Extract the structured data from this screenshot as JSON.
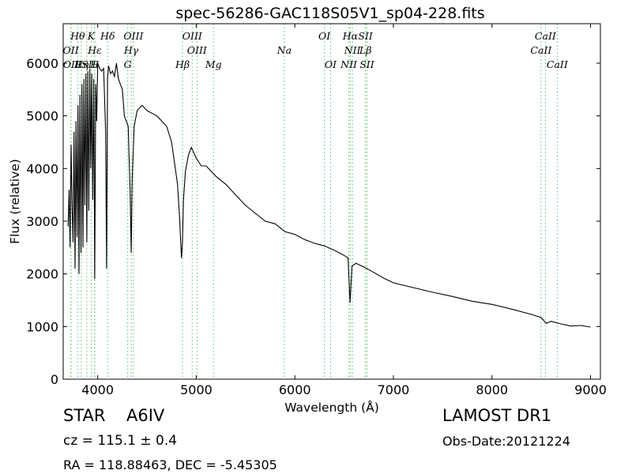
{
  "chart_data": {
    "type": "line",
    "title": "spec-56286-GAC118S05V1_sp04-228.fits",
    "xlabel": "Wavelength (Å)",
    "ylabel": "Flux (relative)",
    "xlim": [
      3650,
      9100
    ],
    "ylim": [
      0,
      6750
    ],
    "xticks": [
      4000,
      5000,
      6000,
      7000,
      8000,
      9000
    ],
    "yticks": [
      0,
      1000,
      2000,
      3000,
      4000,
      5000,
      6000
    ],
    "grid": false,
    "line_color": "#000000",
    "marker_color": "#5fbf6f",
    "series": [
      {
        "x": [
          3700,
          3710,
          3720,
          3730,
          3740,
          3750,
          3760,
          3770,
          3780,
          3790,
          3800,
          3810,
          3820,
          3830,
          3840,
          3850,
          3860,
          3870,
          3880,
          3890,
          3900,
          3910,
          3920,
          3930,
          3940,
          3950,
          3960,
          3970,
          3980,
          3990,
          4000,
          4020,
          4040,
          4060,
          4080,
          4090,
          4100,
          4110,
          4130,
          4150,
          4170,
          4190,
          4210,
          4230,
          4250,
          4270,
          4290,
          4310,
          4330,
          4340,
          4350,
          4370,
          4400,
          4450,
          4500,
          4550,
          4600,
          4650,
          4700,
          4750,
          4780,
          4810,
          4830,
          4850,
          4860,
          4870,
          4890,
          4920,
          4950,
          5000,
          5050,
          5100,
          5200,
          5300,
          5400,
          5500,
          5600,
          5700,
          5800,
          5900,
          6000,
          6100,
          6200,
          6300,
          6400,
          6450,
          6500,
          6540,
          6560,
          6580,
          6620,
          6700,
          6800,
          6900,
          7000,
          7200,
          7400,
          7600,
          7800,
          8000,
          8200,
          8400,
          8500,
          8550,
          8600,
          8700,
          8800,
          8900,
          9000
        ],
        "y": [
          2900,
          3600,
          2500,
          4450,
          3300,
          2600,
          4700,
          2100,
          4900,
          2700,
          5200,
          2000,
          5400,
          2400,
          5600,
          2500,
          5700,
          3300,
          5800,
          2600,
          5850,
          3200,
          5900,
          4000,
          5800,
          3400,
          5700,
          1900,
          5600,
          4900,
          6000,
          5900,
          5850,
          5900,
          4700,
          2100,
          5700,
          5950,
          5800,
          5850,
          5750,
          6000,
          5700,
          5600,
          5500,
          5000,
          4900,
          4800,
          3500,
          2400,
          3800,
          4800,
          5100,
          5200,
          5100,
          5050,
          5000,
          4900,
          4800,
          4500,
          4100,
          3700,
          3100,
          2300,
          2600,
          3400,
          3950,
          4250,
          4400,
          4200,
          4050,
          4050,
          3850,
          3700,
          3500,
          3300,
          3150,
          3000,
          2950,
          2800,
          2750,
          2650,
          2580,
          2530,
          2450,
          2400,
          2350,
          2300,
          1450,
          2150,
          2200,
          2130,
          2030,
          1920,
          1830,
          1740,
          1650,
          1570,
          1480,
          1420,
          1330,
          1230,
          1170,
          1060,
          1100,
          1050,
          1010,
          1020,
          990
        ]
      }
    ],
    "lines_top": [
      {
        "label": "Hθ",
        "x": 3797
      },
      {
        "label": "K",
        "x": 3934
      },
      {
        "label": "Hδ",
        "x": 4101
      },
      {
        "label": "OIII",
        "x": 4363
      },
      {
        "label": "OIII",
        "x": 4959
      },
      {
        "label": "OI",
        "x": 6300
      },
      {
        "label": "Hα",
        "x": 6563
      },
      {
        "label": "SII",
        "x": 6716
      },
      {
        "label": "CaII",
        "x": 8542
      }
    ],
    "lines_mid": [
      {
        "label": "OII",
        "x": 3727
      },
      {
        "label": "Hε",
        "x": 3970
      },
      {
        "label": "Hγ",
        "x": 4340
      },
      {
        "label": "OIII",
        "x": 5007
      },
      {
        "label": "Na",
        "x": 5893
      },
      {
        "label": "NII",
        "x": 6584
      },
      {
        "label": "Lβ",
        "x": 6717
      },
      {
        "label": "CaII",
        "x": 8498
      }
    ],
    "lines_low": [
      {
        "label": "OII",
        "x": 3729
      },
      {
        "label": "Hη",
        "x": 3835
      },
      {
        "label": "ISII",
        "x": 3889
      },
      {
        "label": "H",
        "x": 3968
      },
      {
        "label": "G",
        "x": 4304
      },
      {
        "label": "Hβ",
        "x": 4861
      },
      {
        "label": "Mg",
        "x": 5175
      },
      {
        "label": "OI",
        "x": 6363
      },
      {
        "label": "NII",
        "x": 6548
      },
      {
        "label": "SII",
        "x": 6731
      },
      {
        "label": "CaII",
        "x": 8662
      }
    ]
  },
  "info": {
    "object_class": "STAR",
    "subclass": "A6IV",
    "survey": "LAMOST DR1",
    "redshift": "cz = 115.1 ± 0.4",
    "obs_date": "Obs-Date:20121224",
    "coords": "RA = 118.88463, DEC = -5.45305"
  }
}
